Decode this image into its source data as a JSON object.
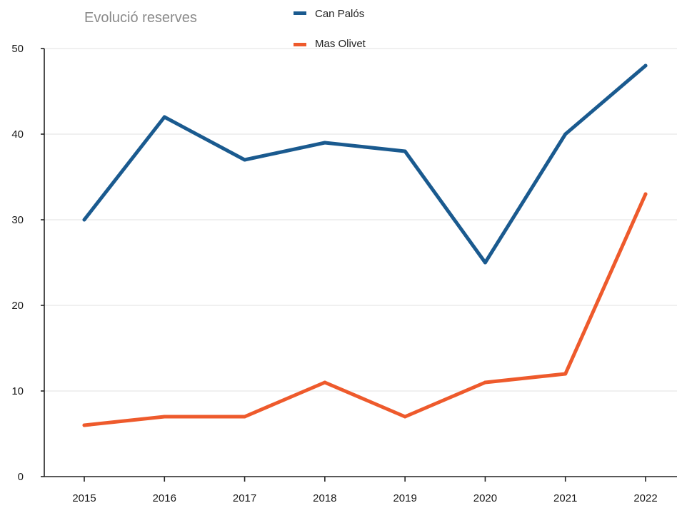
{
  "chart_data": {
    "type": "line",
    "title": "Evolució reserves",
    "xlabel": "",
    "ylabel": "",
    "categories": [
      "2015",
      "2016",
      "2017",
      "2018",
      "2019",
      "2020",
      "2021",
      "2022"
    ],
    "yticks": [
      "0",
      "10",
      "20",
      "30",
      "40",
      "50"
    ],
    "ylim": [
      0,
      50
    ],
    "grid": true,
    "legend": "top",
    "series": [
      {
        "name": "Can Palós",
        "color": "#1a5a8f",
        "values": [
          30,
          42,
          37,
          39,
          38,
          25,
          40,
          48
        ]
      },
      {
        "name": "Mas Olivet",
        "color": "#ee5a2c",
        "values": [
          6,
          7,
          7,
          11,
          7,
          11,
          12,
          33
        ]
      }
    ]
  }
}
